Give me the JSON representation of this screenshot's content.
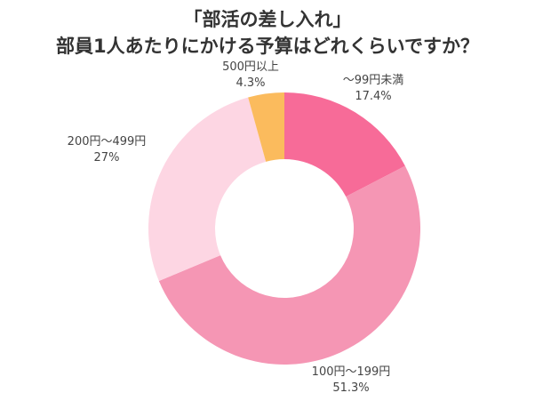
{
  "chart_data": {
    "type": "pie",
    "donut": true,
    "title": [
      "「部活の差し入れ」",
      "部員1人あたりにかける予算はどれくらいですか？"
    ],
    "categories": [
      "～99円未満",
      "100円～199円",
      "200円～499円",
      "500円以上"
    ],
    "values": [
      17.4,
      51.3,
      27,
      4.3
    ],
    "value_labels": [
      "17.4%",
      "51.3%",
      "27%",
      "4.3%"
    ],
    "colors": [
      "#f76b98",
      "#f596b4",
      "#fdd6e3",
      "#fbbb5d"
    ],
    "start": "top",
    "direction": "clockwise",
    "legend": "none"
  }
}
